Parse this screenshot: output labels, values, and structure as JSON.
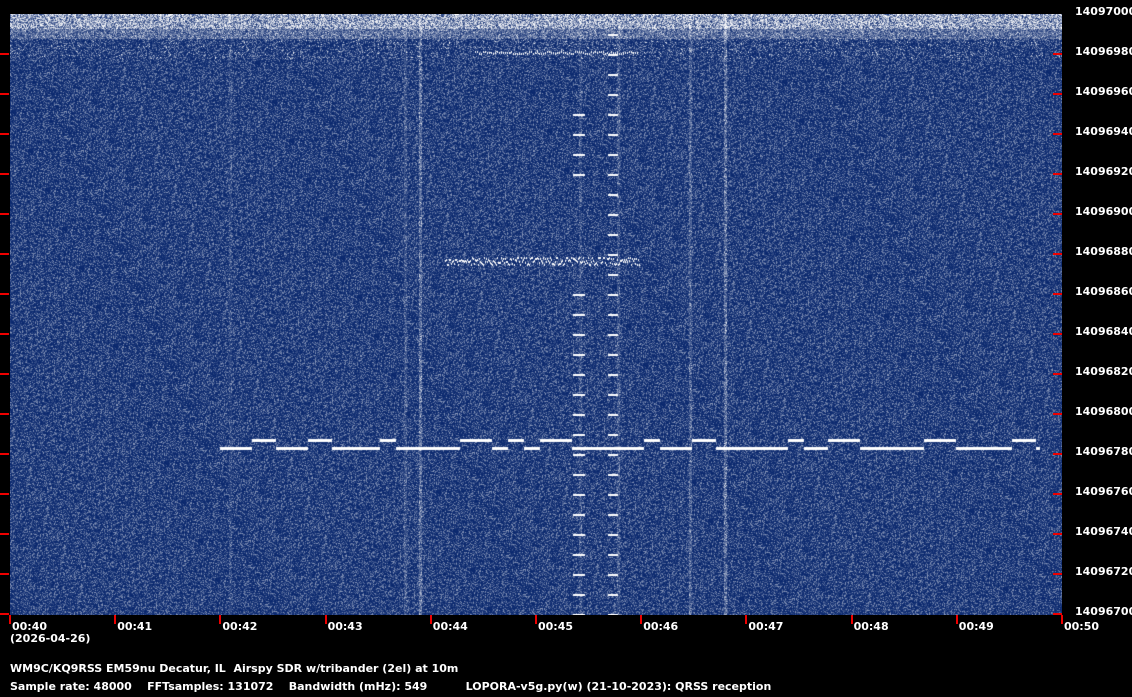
{
  "spectrogram": {
    "freq_axis": {
      "min": 14096700,
      "max": 14097000,
      "step": 20,
      "labels": [
        "14097000",
        "14096980",
        "14096960",
        "14096940",
        "14096920",
        "14096900",
        "14096880",
        "14096860",
        "14096840",
        "14096820",
        "14096800",
        "14096780",
        "14096760",
        "14096740",
        "14096720",
        "14096700"
      ]
    },
    "time_axis": {
      "labels": [
        "00:40",
        "00:41",
        "00:42",
        "00:43",
        "00:44",
        "00:45",
        "00:46",
        "00:47",
        "00:48",
        "00:49",
        "00:50"
      ],
      "date": "(2026-04-26)"
    },
    "colors": {
      "background": "#0a2a6e",
      "signal": "#ffffff",
      "tick": "#ee0000"
    }
  },
  "footer": {
    "station": "WM9C/KQ9RSS EM59nu Decatur, IL  Airspy SDR w/tribander (2el) at 10m",
    "params": "Sample rate: 48000    FFTsamples: 131072    Bandwidth (mHz): 549          LOPORA-v5g.py(w) (21-10-2023): QRSS reception"
  }
}
